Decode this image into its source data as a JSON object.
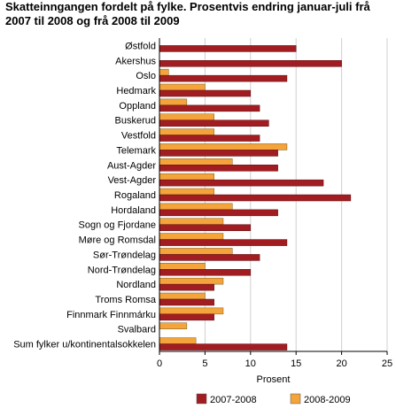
{
  "chart_data": {
    "type": "bar",
    "orientation": "horizontal",
    "title_line1": "Skatteinngangen fordelt på fylke. Prosentvis endring januar-juli frå",
    "title_line2": "2007 til 2008 og frå 2008 til 2009",
    "xlabel": "Prosent",
    "ylabel": "",
    "xlim": [
      0,
      25
    ],
    "xticks": [
      0,
      5,
      10,
      15,
      20,
      25
    ],
    "grid": true,
    "legend_position": "bottom",
    "categories": [
      "Østfold",
      "Akershus",
      "Oslo",
      "Hedmark",
      "Oppland",
      "Buskerud",
      "Vestfold",
      "Telemark",
      "Aust-Agder",
      "Vest-Agder",
      "Rogaland",
      "Hordaland",
      "Sogn og Fjordane",
      "Møre og Romsdal",
      "Sør-Trøndelag",
      "Nord-Trøndelag",
      "Nordland",
      "Troms Romsa",
      "Finnmark Finnmárku",
      "Svalbard",
      "Sum fylker u/kontinentalsokkelen"
    ],
    "series": [
      {
        "name": "2007-2008",
        "color": "#a11d21",
        "values": [
          15,
          20,
          14,
          10,
          11,
          12,
          11,
          13,
          13,
          18,
          21,
          13,
          10,
          14,
          11,
          10,
          6,
          6,
          6,
          0,
          14
        ]
      },
      {
        "name": "2008-2009",
        "color": "#f4a43a",
        "values": [
          0,
          0,
          1,
          5,
          3,
          6,
          6,
          14,
          8,
          6,
          6,
          8,
          7,
          7,
          8,
          5,
          7,
          5,
          7,
          3,
          4
        ]
      }
    ]
  }
}
